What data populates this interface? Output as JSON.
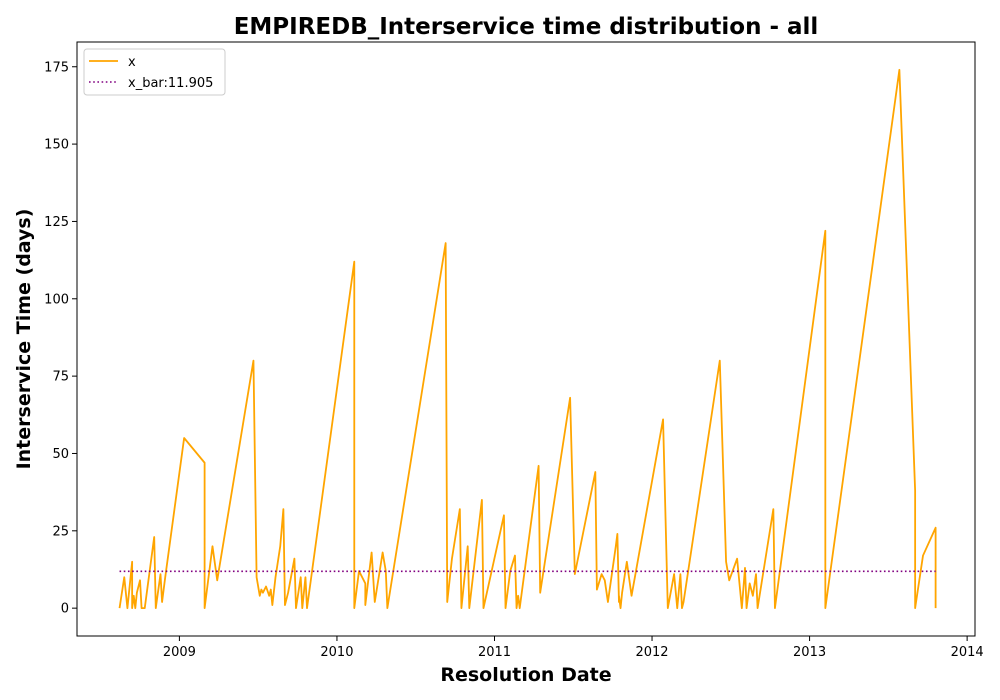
{
  "chart_data": {
    "type": "line",
    "title": "EMPIREDB_Interservice time distribution - all",
    "xlabel": "Resolution Date",
    "ylabel": "Interservice Time (days)",
    "xlim": [
      2008.35,
      2014.05
    ],
    "ylim": [
      -9,
      183
    ],
    "x_ticks": [
      2009,
      2010,
      2011,
      2012,
      2013,
      2014
    ],
    "y_ticks": [
      0,
      25,
      50,
      75,
      100,
      125,
      150,
      175
    ],
    "grid": false,
    "legend": {
      "position": "top-left",
      "entries": [
        "x",
        "x_bar:11.905"
      ]
    },
    "colors": {
      "x": "#FFA500",
      "x_bar": "#800080"
    },
    "series": [
      {
        "name": "x",
        "style": "solid",
        "points": [
          [
            2008.62,
            0
          ],
          [
            2008.65,
            10
          ],
          [
            2008.67,
            0
          ],
          [
            2008.7,
            15
          ],
          [
            2008.7,
            0
          ],
          [
            2008.71,
            4
          ],
          [
            2008.72,
            0
          ],
          [
            2008.73,
            5
          ],
          [
            2008.75,
            9
          ],
          [
            2008.76,
            0
          ],
          [
            2008.78,
            0
          ],
          [
            2008.84,
            23
          ],
          [
            2008.85,
            0
          ],
          [
            2008.88,
            11
          ],
          [
            2008.89,
            2
          ],
          [
            2008.91,
            10
          ],
          [
            2009.03,
            55
          ],
          [
            2009.16,
            47
          ],
          [
            2009.16,
            0
          ],
          [
            2009.21,
            20
          ],
          [
            2009.24,
            9
          ],
          [
            2009.47,
            80
          ],
          [
            2009.49,
            10
          ],
          [
            2009.51,
            4
          ],
          [
            2009.52,
            6
          ],
          [
            2009.53,
            5
          ],
          [
            2009.55,
            7
          ],
          [
            2009.57,
            4
          ],
          [
            2009.58,
            6
          ],
          [
            2009.59,
            1
          ],
          [
            2009.61,
            10
          ],
          [
            2009.64,
            20
          ],
          [
            2009.66,
            32
          ],
          [
            2009.67,
            1
          ],
          [
            2009.69,
            5
          ],
          [
            2009.73,
            16
          ],
          [
            2009.74,
            0
          ],
          [
            2009.77,
            10
          ],
          [
            2009.78,
            0
          ],
          [
            2009.8,
            10
          ],
          [
            2009.81,
            0
          ],
          [
            2010.11,
            112
          ],
          [
            2010.11,
            0
          ],
          [
            2010.14,
            12
          ],
          [
            2010.16,
            10
          ],
          [
            2010.18,
            8
          ],
          [
            2010.18,
            1
          ],
          [
            2010.22,
            18
          ],
          [
            2010.24,
            2
          ],
          [
            2010.29,
            18
          ],
          [
            2010.31,
            12
          ],
          [
            2010.32,
            0
          ],
          [
            2010.69,
            118
          ],
          [
            2010.7,
            2
          ],
          [
            2010.73,
            16
          ],
          [
            2010.78,
            32
          ],
          [
            2010.79,
            0
          ],
          [
            2010.83,
            20
          ],
          [
            2010.84,
            0
          ],
          [
            2010.92,
            35
          ],
          [
            2010.93,
            0
          ],
          [
            2011.06,
            30
          ],
          [
            2011.07,
            0
          ],
          [
            2011.1,
            12
          ],
          [
            2011.13,
            17
          ],
          [
            2011.14,
            0
          ],
          [
            2011.15,
            4
          ],
          [
            2011.16,
            0
          ],
          [
            2011.28,
            46
          ],
          [
            2011.29,
            5
          ],
          [
            2011.48,
            68
          ],
          [
            2011.51,
            11
          ],
          [
            2011.64,
            44
          ],
          [
            2011.65,
            6
          ],
          [
            2011.68,
            11
          ],
          [
            2011.7,
            9
          ],
          [
            2011.72,
            2
          ],
          [
            2011.77,
            20
          ],
          [
            2011.78,
            24
          ],
          [
            2011.79,
            2
          ],
          [
            2011.79,
            4
          ],
          [
            2011.8,
            0
          ],
          [
            2011.81,
            5
          ],
          [
            2011.84,
            15
          ],
          [
            2011.87,
            4
          ],
          [
            2012.07,
            61
          ],
          [
            2012.1,
            0
          ],
          [
            2012.14,
            11
          ],
          [
            2012.16,
            0
          ],
          [
            2012.18,
            11
          ],
          [
            2012.19,
            0
          ],
          [
            2012.2,
            2
          ],
          [
            2012.43,
            80
          ],
          [
            2012.47,
            15
          ],
          [
            2012.49,
            9
          ],
          [
            2012.54,
            16
          ],
          [
            2012.57,
            0
          ],
          [
            2012.59,
            13
          ],
          [
            2012.6,
            0
          ],
          [
            2012.62,
            8
          ],
          [
            2012.64,
            4
          ],
          [
            2012.66,
            11
          ],
          [
            2012.67,
            0
          ],
          [
            2012.77,
            32
          ],
          [
            2012.78,
            0
          ],
          [
            2013.1,
            122
          ],
          [
            2013.1,
            0
          ],
          [
            2013.57,
            174
          ],
          [
            2013.67,
            38
          ],
          [
            2013.67,
            0
          ],
          [
            2013.72,
            17
          ],
          [
            2013.8,
            26
          ],
          [
            2013.8,
            0
          ]
        ]
      },
      {
        "name": "x_bar:11.905",
        "style": "dotted",
        "points": [
          [
            2008.62,
            11.905
          ],
          [
            2013.8,
            11.905
          ]
        ]
      }
    ]
  }
}
